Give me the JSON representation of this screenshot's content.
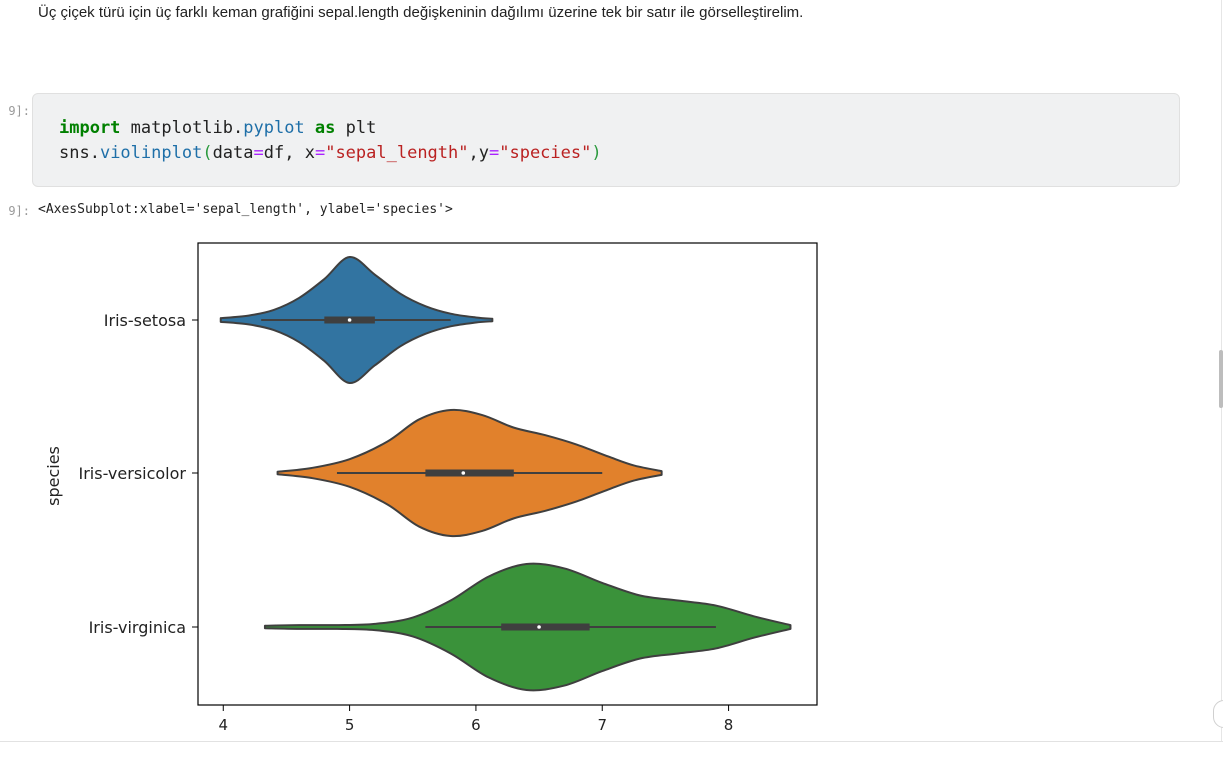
{
  "markdown": {
    "text": "Üç çiçek türü için üç farklı keman grafiğini sepal.length değişkeninin dağılımı üzerine tek bir satır ile görselleştirelim."
  },
  "cell": {
    "in_prompt": "9]:",
    "out_prompt": "9]:",
    "code": {
      "line1": {
        "kw_import": "import",
        "module_a": " matplotlib.",
        "module_b": "pyplot",
        "sp1": " ",
        "kw_as": "as",
        "alias": " plt"
      },
      "line2": {
        "obj": "sns.",
        "func": "violinplot",
        "open": "(",
        "arg1": "data",
        "eq1": "=",
        "val1": "df, x",
        "eq2": "=",
        "str1": "\"sepal_length\"",
        "comma": ",y",
        "eq3": "=",
        "str2": "\"species\"",
        "close": ")"
      }
    },
    "output_text": "<AxesSubplot:xlabel='sepal_length', ylabel='species'>"
  },
  "chart_data": {
    "type": "violin",
    "title": "",
    "xlabel": "",
    "ylabel": "species",
    "xlim": [
      3.8,
      8.7
    ],
    "xticks": [
      4,
      5,
      6,
      7,
      8
    ],
    "categories": [
      "Iris-setosa",
      "Iris-versicolor",
      "Iris-virginica"
    ],
    "series": [
      {
        "name": "Iris-setosa",
        "color": "#3274a1",
        "min": 4.3,
        "q1": 4.8,
        "median": 5.0,
        "q3": 5.2,
        "max": 5.8,
        "kde_min": 3.98,
        "kde_max": 6.13,
        "density": [
          [
            3.98,
            0.03
          ],
          [
            4.2,
            0.07
          ],
          [
            4.4,
            0.16
          ],
          [
            4.6,
            0.35
          ],
          [
            4.8,
            0.65
          ],
          [
            5.0,
            1.0
          ],
          [
            5.2,
            0.72
          ],
          [
            5.4,
            0.42
          ],
          [
            5.6,
            0.22
          ],
          [
            5.8,
            0.1
          ],
          [
            6.0,
            0.04
          ],
          [
            6.13,
            0.02
          ]
        ]
      },
      {
        "name": "Iris-versicolor",
        "color": "#e1812c",
        "min": 4.9,
        "q1": 5.6,
        "median": 5.9,
        "q3": 6.3,
        "max": 7.0,
        "kde_min": 4.43,
        "kde_max": 7.47,
        "density": [
          [
            4.43,
            0.02
          ],
          [
            4.7,
            0.08
          ],
          [
            5.0,
            0.22
          ],
          [
            5.3,
            0.5
          ],
          [
            5.55,
            0.85
          ],
          [
            5.8,
            1.0
          ],
          [
            6.05,
            0.92
          ],
          [
            6.3,
            0.72
          ],
          [
            6.55,
            0.6
          ],
          [
            6.8,
            0.45
          ],
          [
            7.05,
            0.26
          ],
          [
            7.25,
            0.12
          ],
          [
            7.47,
            0.03
          ]
        ]
      },
      {
        "name": "Iris-virginica",
        "color": "#3a923a",
        "min": 5.6,
        "q1": 6.2,
        "median": 6.5,
        "q3": 6.9,
        "max": 7.9,
        "kde_min": 4.33,
        "kde_max": 8.49,
        "density": [
          [
            4.33,
            0.02
          ],
          [
            4.6,
            0.03
          ],
          [
            4.9,
            0.03
          ],
          [
            5.2,
            0.05
          ],
          [
            5.5,
            0.15
          ],
          [
            5.8,
            0.42
          ],
          [
            6.1,
            0.8
          ],
          [
            6.4,
            1.0
          ],
          [
            6.7,
            0.93
          ],
          [
            7.0,
            0.7
          ],
          [
            7.3,
            0.5
          ],
          [
            7.6,
            0.42
          ],
          [
            7.9,
            0.34
          ],
          [
            8.2,
            0.17
          ],
          [
            8.49,
            0.03
          ]
        ]
      }
    ]
  }
}
